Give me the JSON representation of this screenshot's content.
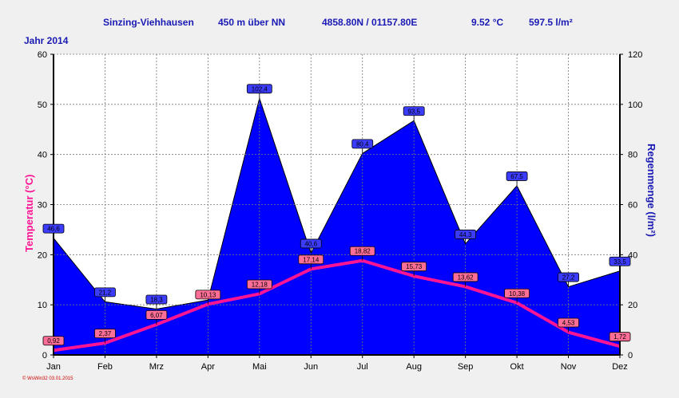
{
  "header": {
    "station": "Sinzing-Viehhausen",
    "altitude": "450 m über NN",
    "coordinates": "4858.80N / 01157.80E",
    "avg_temp": "9.52 °C",
    "total_rain": "597.5 l/m²"
  },
  "year_label": "Jahr  2014",
  "footer": "© WsWin32  03.01.2015",
  "colors": {
    "rain_fill": "#0000ff",
    "temp_line": "#ff1493",
    "rain_label_bg": "#3c3cff",
    "temp_label_bg": "#ff6e96"
  },
  "chart_data": {
    "type": "area",
    "categories": [
      "Jan",
      "Feb",
      "Mrz",
      "Apr",
      "Mai",
      "Jun",
      "Jul",
      "Aug",
      "Sep",
      "Okt",
      "Nov",
      "Dez"
    ],
    "series": [
      {
        "name": "Temperatur",
        "axis": "left",
        "type": "line",
        "values": [
          0.92,
          2.37,
          6.07,
          10.13,
          12.18,
          17.14,
          18.82,
          15.73,
          13.62,
          10.38,
          4.53,
          1.72
        ],
        "labels": [
          "0,92",
          "2,37",
          "6,07",
          "10,13",
          "12,18",
          "17,14",
          "18,82",
          "15,73",
          "13,62",
          "10,38",
          "4,53",
          "1,72"
        ]
      },
      {
        "name": "Regenmenge",
        "axis": "right",
        "type": "area",
        "values": [
          46.6,
          21.2,
          18.3,
          21.9,
          102.4,
          40.6,
          80.4,
          93.5,
          44.3,
          67.5,
          27.2,
          33.5
        ],
        "labels": [
          "46,6",
          "21,2",
          "18,3",
          "",
          "102,4",
          "40,6",
          "80,4",
          "93,5",
          "44,3",
          "67,5",
          "27,2",
          "33,5"
        ]
      }
    ],
    "ylabel_left": "Temperatur  (°C)",
    "ylabel_right": "Regenmenge  (l/m²)",
    "ylim_left": [
      0,
      60
    ],
    "ylim_right": [
      0,
      120
    ],
    "yticks_left": [
      0,
      10,
      20,
      30,
      40,
      50,
      60
    ],
    "yticks_right": [
      0,
      20,
      40,
      60,
      80,
      100,
      120
    ],
    "grid": true
  }
}
